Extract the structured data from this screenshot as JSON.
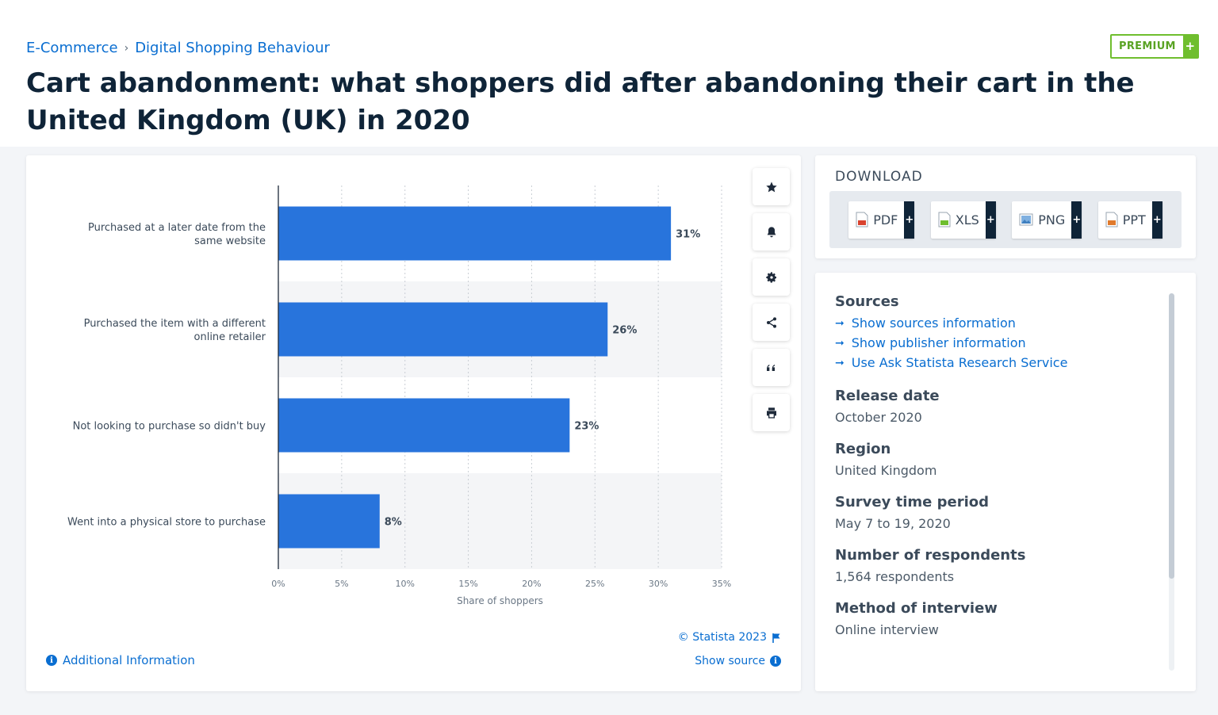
{
  "breadcrumb": {
    "items": [
      "E-Commerce",
      "Digital Shopping Behaviour"
    ],
    "separator": "›"
  },
  "page_title": "Cart abandonment: what shoppers did after abandoning their cart in the United Kingdom (UK) in 2020",
  "premium": {
    "label": "PREMIUM",
    "plus": "+"
  },
  "chart_data": {
    "type": "bar",
    "orientation": "horizontal",
    "categories": [
      "Purchased at a later date from the same website",
      "Purchased the item with a different online retailer",
      "Not looking to purchase so didn't buy",
      "Went into a physical store to purchase"
    ],
    "values": [
      31,
      26,
      23,
      8
    ],
    "data_labels": [
      "31%",
      "26%",
      "23%",
      "8%"
    ],
    "xlabel": "Share of shoppers",
    "ylabel": "",
    "xlim": [
      0,
      35
    ],
    "xticks": [
      0,
      5,
      10,
      15,
      20,
      25,
      30,
      35
    ],
    "xtick_labels": [
      "0%",
      "5%",
      "10%",
      "15%",
      "20%",
      "25%",
      "30%",
      "35%"
    ],
    "grid": true,
    "bar_color": "#2874dc"
  },
  "tools": [
    "star-icon",
    "bell-icon",
    "gear-icon",
    "share-icon",
    "quote-icon",
    "print-icon"
  ],
  "chart_footer": {
    "credit": "© Statista 2023",
    "show_source": "Show source",
    "additional_info": "Additional Information"
  },
  "download": {
    "title": "DOWNLOAD",
    "buttons": [
      {
        "label": "PDF",
        "plus": "+"
      },
      {
        "label": "XLS",
        "plus": "+"
      },
      {
        "label": "PNG",
        "plus": "+"
      },
      {
        "label": "PPT",
        "plus": "+"
      }
    ]
  },
  "meta": {
    "sources_title": "Sources",
    "links": [
      "Show sources information",
      "Show publisher information",
      "Use Ask Statista Research Service"
    ],
    "release_date_label": "Release date",
    "release_date": "October 2020",
    "region_label": "Region",
    "region": "United Kingdom",
    "survey_label": "Survey time period",
    "survey": "May 7 to 19, 2020",
    "respondents_label": "Number of respondents",
    "respondents": "1,564 respondents",
    "method_label": "Method of interview",
    "method": "Online interview"
  },
  "colors": {
    "accent": "#0a6ed1",
    "bar": "#2874dc",
    "premium": "#6fbe2e",
    "title": "#0f2438"
  }
}
